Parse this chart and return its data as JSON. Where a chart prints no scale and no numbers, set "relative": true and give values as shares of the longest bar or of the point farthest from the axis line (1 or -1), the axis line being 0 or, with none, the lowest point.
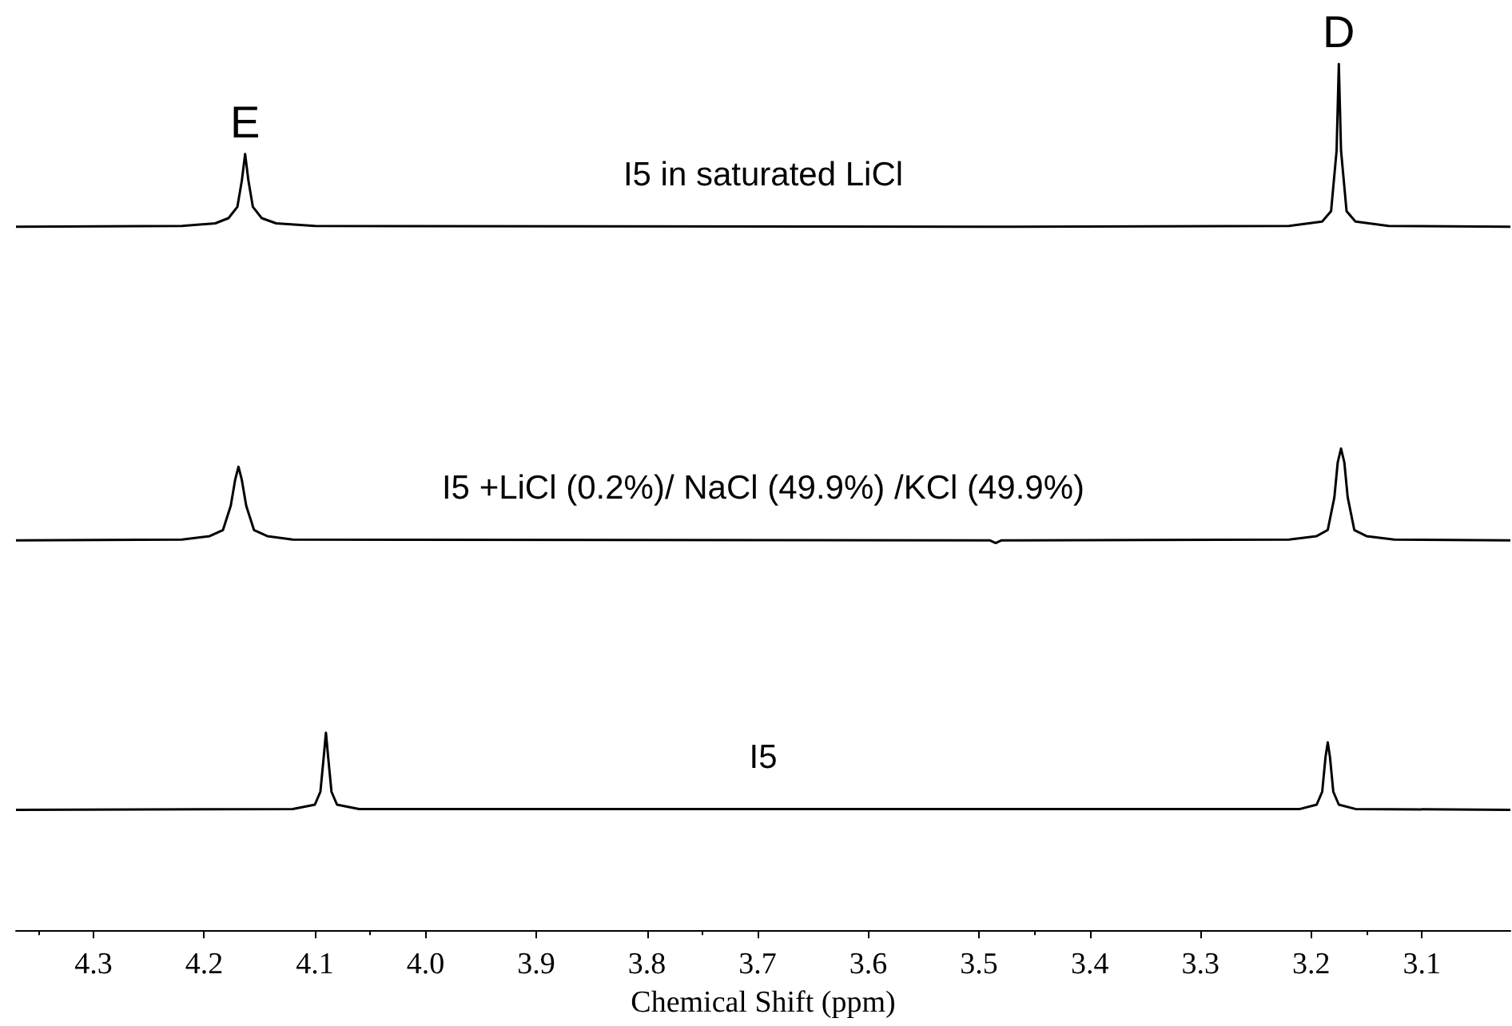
{
  "chart_data": {
    "type": "line",
    "relative": true,
    "xlabel": "Chemical Shift (ppm)",
    "xlim": [
      4.37,
      3.02
    ],
    "xticks": [
      4.3,
      4.2,
      4.1,
      {
        "value": 4.0,
        "label": "4.0"
      },
      3.9,
      3.8,
      3.7,
      3.6,
      3.5,
      3.4,
      3.3,
      3.2,
      3.1
    ],
    "grid": false,
    "legend": false,
    "marker": "none",
    "line_style": "solid",
    "annotations": [
      {
        "text": "E",
        "x": 4.163,
        "y": 0.896
      },
      {
        "text": "D",
        "x": 3.175,
        "y": 1
      }
    ],
    "series": [
      {
        "name": "I5 in saturated LiCl",
        "color": "#000000",
        "x": [
          4.37,
          4.22,
          4.19,
          4.178,
          4.17,
          4.166,
          4.163,
          4.16,
          4.156,
          4.148,
          4.135,
          4.1,
          3.5,
          3.22,
          3.19,
          3.182,
          3.177,
          3.175,
          3.173,
          3.168,
          3.16,
          3.13,
          3.02
        ],
        "values": [
          0.812,
          0.813,
          0.816,
          0.822,
          0.835,
          0.865,
          0.896,
          0.865,
          0.835,
          0.822,
          0.816,
          0.813,
          0.812,
          0.813,
          0.818,
          0.83,
          0.9,
          1,
          0.9,
          0.83,
          0.818,
          0.813,
          0.812
        ]
      },
      {
        "name": "I5 +LiCl (0.2%)/ NaCl (49.9%) /KCl (49.9%)",
        "color": "#000000",
        "x": [
          4.37,
          4.22,
          4.195,
          4.183,
          4.176,
          4.172,
          4.169,
          4.166,
          4.162,
          4.155,
          4.143,
          4.12,
          3.49,
          3.485,
          3.48,
          3.22,
          3.195,
          3.185,
          3.179,
          3.176,
          3.173,
          3.17,
          3.167,
          3.161,
          3.15,
          3.125,
          3.02
        ],
        "values": [
          0.45,
          0.451,
          0.455,
          0.462,
          0.49,
          0.52,
          0.535,
          0.52,
          0.49,
          0.462,
          0.455,
          0.451,
          0.45,
          0.447,
          0.45,
          0.451,
          0.455,
          0.462,
          0.5,
          0.54,
          0.556,
          0.54,
          0.5,
          0.462,
          0.455,
          0.451,
          0.45
        ]
      },
      {
        "name": "I5",
        "color": "#000000",
        "x": [
          4.37,
          4.12,
          4.1,
          4.095,
          4.092,
          4.09,
          4.088,
          4.085,
          4.08,
          4.06,
          3.21,
          3.195,
          3.19,
          3.187,
          3.185,
          3.183,
          3.18,
          3.175,
          3.16,
          3.02
        ],
        "values": [
          0.139,
          0.14,
          0.145,
          0.16,
          0.2,
          0.228,
          0.2,
          0.16,
          0.145,
          0.14,
          0.14,
          0.145,
          0.16,
          0.2,
          0.217,
          0.2,
          0.16,
          0.145,
          0.14,
          0.139
        ]
      }
    ]
  }
}
